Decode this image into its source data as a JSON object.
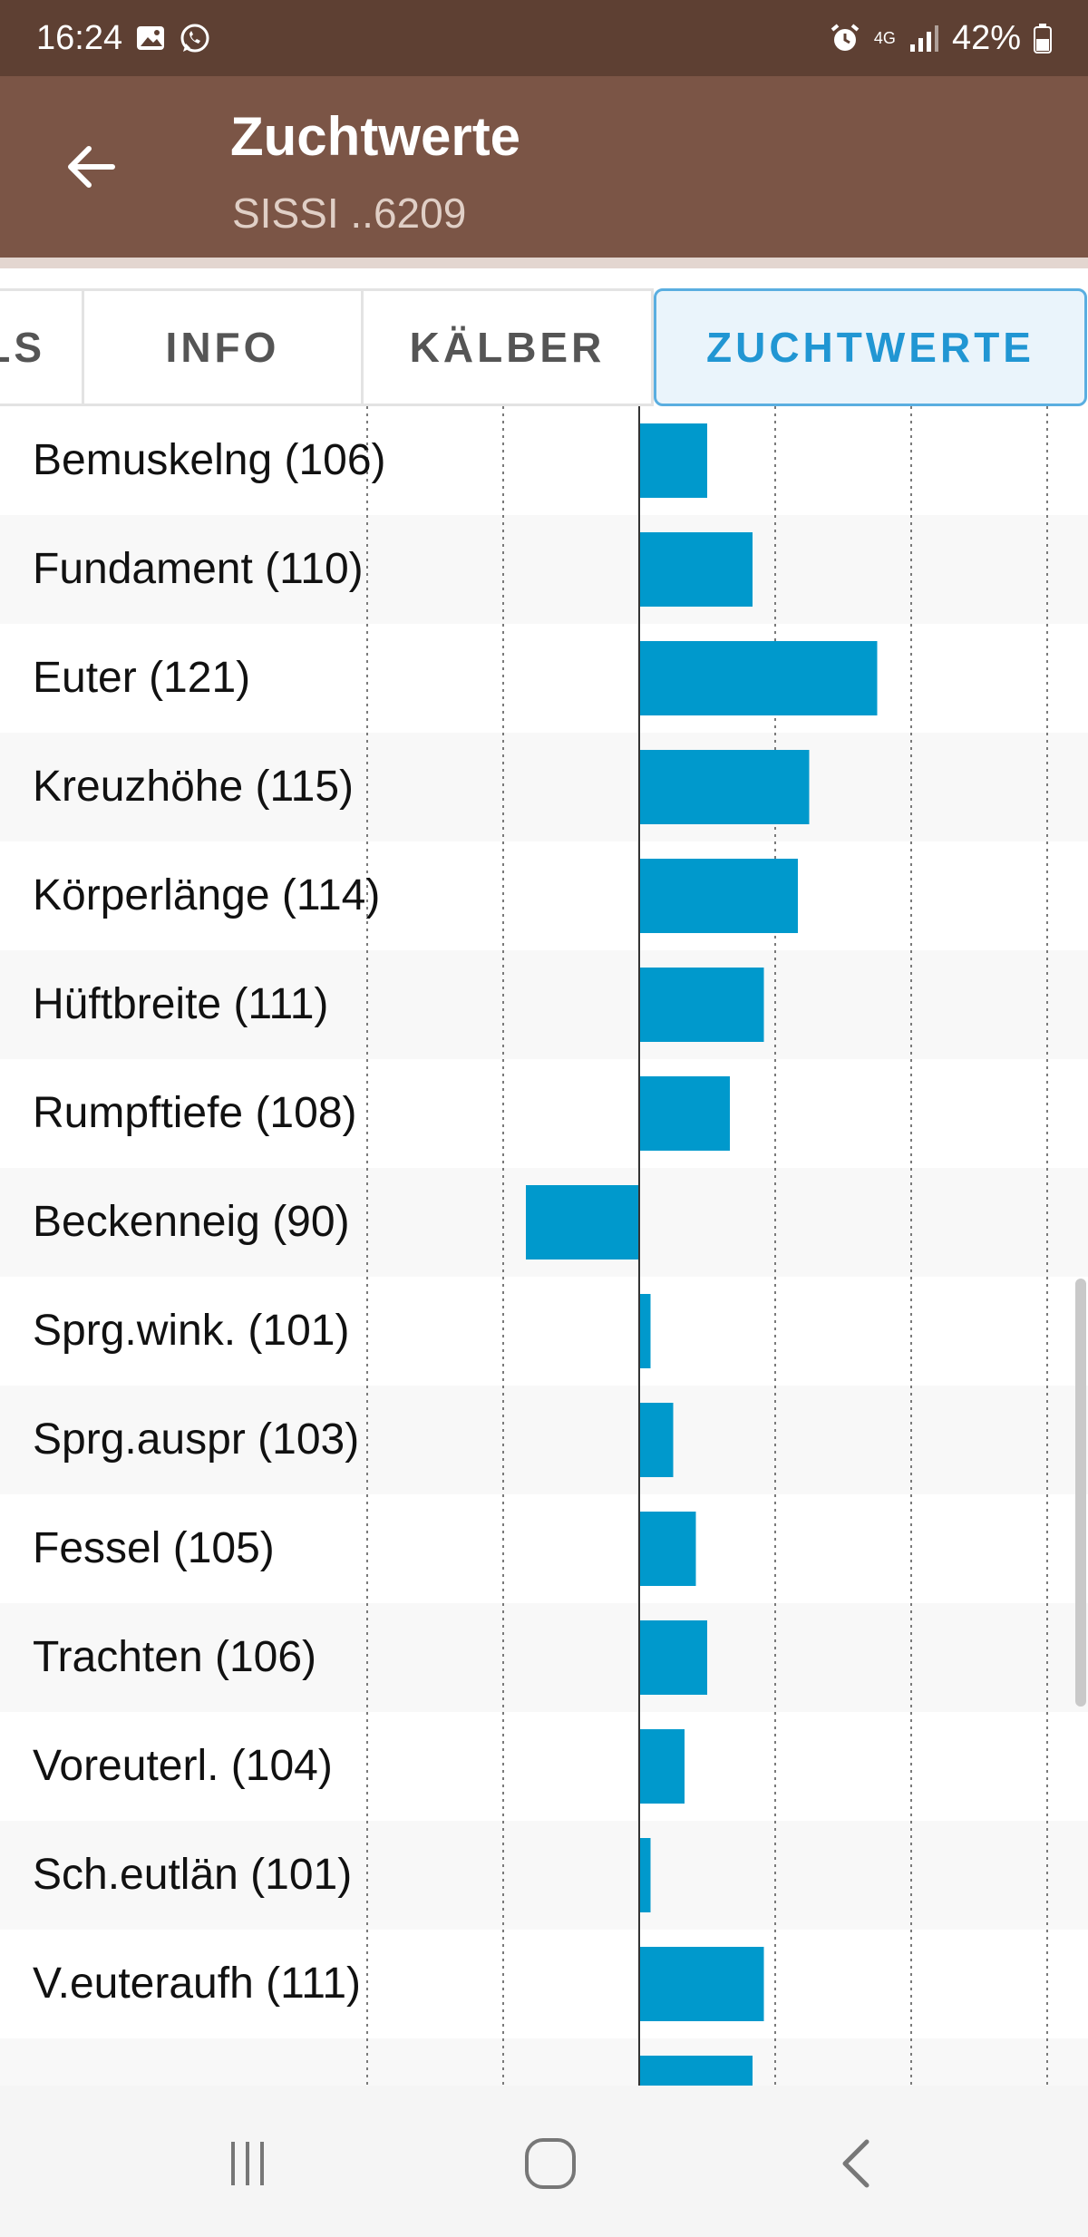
{
  "status_bar": {
    "time": "16:24",
    "network": "4G",
    "battery": "42%",
    "icons": [
      "gallery-icon",
      "whatsapp-icon",
      "alarm-icon",
      "signal-icon",
      "battery-icon"
    ]
  },
  "app_bar": {
    "title": "Zuchtwerte",
    "subtitle": "SISSI ..6209",
    "back_icon": "arrow-left-icon"
  },
  "tabs": [
    {
      "label": "LS",
      "active": false
    },
    {
      "label": "INFO",
      "active": false
    },
    {
      "label": "KÄLBER",
      "active": false
    },
    {
      "label": "ZUCHTWERTE",
      "active": true
    }
  ],
  "colors": {
    "status_bar": "#5e4033",
    "app_bar": "#7b5546",
    "accent": "#2196d3",
    "bar": "#0099cc"
  },
  "chart_data": {
    "type": "bar",
    "orientation": "horizontal",
    "baseline": 100,
    "xlim": [
      80,
      140
    ],
    "grid": true,
    "categories": [
      "Bemuskelng",
      "Fundament",
      "Euter",
      "Kreuzhöhe",
      "Körperlänge",
      "Hüftbreite",
      "Rumpftiefe",
      "Beckenneig",
      "Sprg.wink.",
      "Sprg.auspr",
      "Fessel",
      "Trachten",
      "Voreuterl.",
      "Sch.eutlän",
      "V.euteraufh",
      ""
    ],
    "values": [
      106,
      110,
      121,
      115,
      114,
      111,
      108,
      90,
      101,
      103,
      105,
      106,
      104,
      101,
      111,
      110
    ],
    "labels": [
      "Bemuskelng (106)",
      "Fundament (110)",
      "Euter (121)",
      "Kreuzhöhe (115)",
      "Körperlänge (114)",
      "Hüftbreite (111)",
      "Rumpftiefe (108)",
      "Beckenneig (90)",
      "Sprg.wink. (101)",
      "Sprg.auspr (103)",
      "Fessel (105)",
      "Trachten (106)",
      "Voreuterl. (104)",
      "Sch.eutlän (101)",
      "V.euteraufh (111)"
    ]
  },
  "nav_bar": {
    "icons": [
      "recents-icon",
      "home-icon",
      "back-icon"
    ]
  }
}
